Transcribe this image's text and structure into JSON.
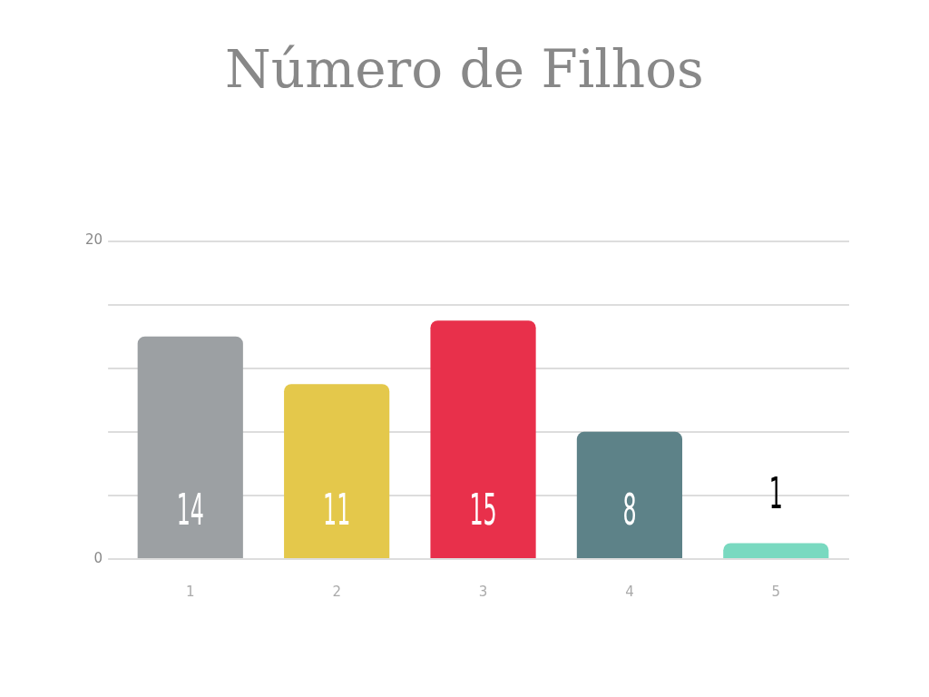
{
  "chart_data": {
    "type": "bar",
    "title": "Número de Filhos",
    "categories": [
      "1",
      "2",
      "3",
      "4",
      "5"
    ],
    "values": [
      14,
      11,
      15,
      8,
      1
    ],
    "colors": [
      "#9ca0a3",
      "#e4c84b",
      "#e8304b",
      "#5d8288",
      "#79d9c0"
    ],
    "ylim": [
      0,
      20
    ],
    "yticks": [
      0,
      {
        "value": 4,
        "label": null
      },
      {
        "value": 8,
        "label": null
      },
      {
        "value": 12,
        "label": null
      },
      {
        "value": 16,
        "label": null
      },
      20
    ],
    "grid": "y",
    "legend": false,
    "data_labels": true
  }
}
